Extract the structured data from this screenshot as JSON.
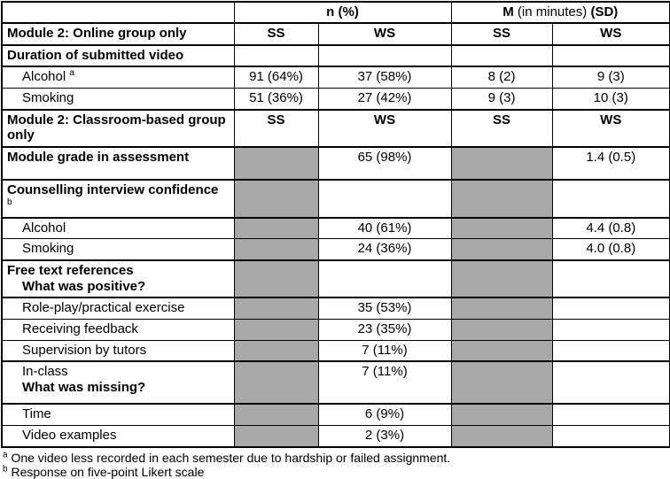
{
  "colors": {
    "shaded_cell": "#a8a8a8",
    "border": "#000000"
  },
  "header": {
    "label_col": "",
    "n_header": "n (%)",
    "m_bold1": "M",
    "m_mid": " (in minutes) ",
    "m_sd": "(SD)"
  },
  "rows": [
    {
      "thick": 1,
      "label": [
        {
          "text": "Module 2: Online group only",
          "bold": 1
        }
      ],
      "cells": [
        {
          "text": "SS",
          "bold": 1
        },
        {
          "text": "WS",
          "bold": 1
        },
        {
          "text": "SS",
          "bold": 1
        },
        {
          "text": "WS",
          "bold": 1
        }
      ]
    },
    {
      "thick": 1,
      "label": [
        {
          "text": "Duration of submitted video",
          "bold": 1
        }
      ],
      "cells": [
        {
          "text": ""
        },
        {
          "text": ""
        },
        {
          "text": ""
        },
        {
          "text": ""
        }
      ]
    },
    {
      "label": [
        {
          "text": "Alcohol",
          "indent": 1,
          "sup": "a"
        }
      ],
      "cells": [
        {
          "text": "91 (64%)"
        },
        {
          "text": "37 (58%)"
        },
        {
          "text": "8 (2)"
        },
        {
          "text": "9 (3)"
        }
      ]
    },
    {
      "label": [
        {
          "text": "Smoking",
          "indent": 1
        }
      ],
      "cells": [
        {
          "text": "51 (36%)"
        },
        {
          "text": "27 (42%)"
        },
        {
          "text": "9 (3)"
        },
        {
          "text": "10 (3)"
        }
      ]
    },
    {
      "thick": 1,
      "label": [
        {
          "text": "Module 2: Classroom-based group only",
          "bold": 1
        }
      ],
      "cells": [
        {
          "text": "SS",
          "bold": 1
        },
        {
          "text": "WS",
          "bold": 1
        },
        {
          "text": "SS",
          "bold": 1
        },
        {
          "text": "WS",
          "bold": 1
        }
      ]
    },
    {
      "thick": 1,
      "label": [
        {
          "text": "Module grade in assessment",
          "bold": 1
        }
      ],
      "cells": [
        {
          "text": "",
          "gray": 1
        },
        {
          "text": "65 (98%)"
        },
        {
          "text": "",
          "gray": 1
        },
        {
          "text": "1.4 (0.5)"
        }
      ]
    },
    {
      "thick": 1,
      "label": [
        {
          "text": "Counselling interview confidence",
          "bold": 1
        },
        {
          "text": "",
          "sup": "b"
        }
      ],
      "cells": [
        {
          "text": "",
          "gray": 1
        },
        {
          "text": ""
        },
        {
          "text": "",
          "gray": 1
        },
        {
          "text": ""
        }
      ]
    },
    {
      "label": [
        {
          "text": "Alcohol",
          "indent": 1
        }
      ],
      "cells": [
        {
          "text": "",
          "gray": 1
        },
        {
          "text": "40 (61%)"
        },
        {
          "text": "",
          "gray": 1
        },
        {
          "text": "4.4 (0.8)"
        }
      ]
    },
    {
      "label": [
        {
          "text": "Smoking",
          "indent": 1
        }
      ],
      "cells": [
        {
          "text": "",
          "gray": 1
        },
        {
          "text": "24 (36%)"
        },
        {
          "text": "",
          "gray": 1
        },
        {
          "text": "4.0 (0.8)"
        }
      ]
    },
    {
      "thick": 1,
      "label": [
        {
          "text": "Free text references",
          "bold": 1
        },
        {
          "text": "What was positive?",
          "bold": 1,
          "indent": 1
        }
      ],
      "cells": [
        {
          "text": "",
          "gray": 1
        },
        {
          "text": ""
        },
        {
          "text": "",
          "gray": 1
        },
        {
          "text": ""
        }
      ]
    },
    {
      "label": [
        {
          "text": "Role-play/practical exercise",
          "indent": 1
        }
      ],
      "cells": [
        {
          "text": "",
          "gray": 1
        },
        {
          "text": "35 (53%)"
        },
        {
          "text": "",
          "gray": 1
        },
        {
          "text": ""
        }
      ]
    },
    {
      "label": [
        {
          "text": "Receiving feedback",
          "indent": 1
        }
      ],
      "cells": [
        {
          "text": "",
          "gray": 1
        },
        {
          "text": "23 (35%)"
        },
        {
          "text": "",
          "gray": 1
        },
        {
          "text": ""
        }
      ]
    },
    {
      "label": [
        {
          "text": "Supervision by tutors",
          "indent": 1
        }
      ],
      "cells": [
        {
          "text": "",
          "gray": 1
        },
        {
          "text": "7 (11%)"
        },
        {
          "text": "",
          "gray": 1
        },
        {
          "text": ""
        }
      ]
    },
    {
      "thick": 1,
      "label": [
        {
          "text": "In-class",
          "indent": 1
        },
        {
          "text": "What was missing?",
          "bold": 1,
          "indent": 1
        }
      ],
      "cells": [
        {
          "text": "",
          "gray": 1
        },
        {
          "text": "7 (11%)"
        },
        {
          "text": "",
          "gray": 1
        },
        {
          "text": ""
        }
      ]
    },
    {
      "label": [
        {
          "text": "Time",
          "indent": 1
        }
      ],
      "cells": [
        {
          "text": "",
          "gray": 1
        },
        {
          "text": "6 (9%)"
        },
        {
          "text": "",
          "gray": 1
        },
        {
          "text": ""
        }
      ]
    },
    {
      "label": [
        {
          "text": "Video examples",
          "indent": 1
        }
      ],
      "cells": [
        {
          "text": "",
          "gray": 1
        },
        {
          "text": "2 (3%)"
        },
        {
          "text": "",
          "gray": 1
        },
        {
          "text": ""
        }
      ]
    }
  ],
  "footnotes": [
    {
      "sup": "a",
      "text": "One video less recorded in each semester due to hardship or failed assignment."
    },
    {
      "sup": "b",
      "text": "Response on five-point Likert scale"
    }
  ]
}
